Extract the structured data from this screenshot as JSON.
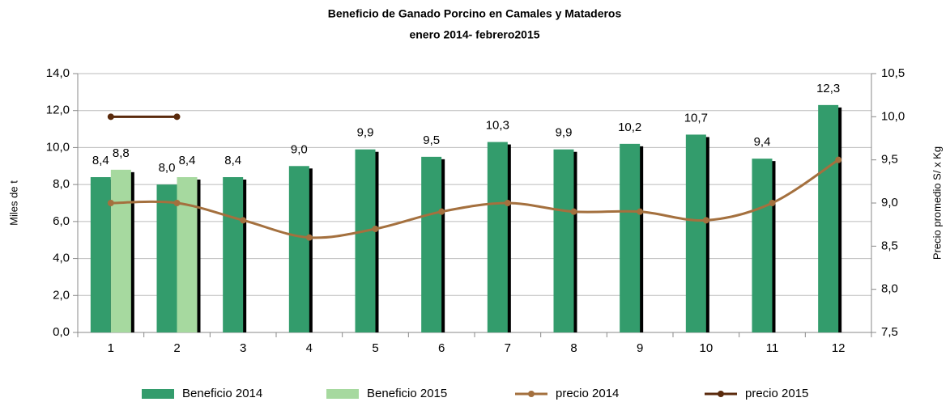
{
  "chart_data": {
    "type": "bar_line",
    "title": "Beneficio de Ganado Porcino en Camales y Mataderos",
    "subtitle": "enero 2014- febrero2015",
    "y_label": "Miles de t",
    "y2_label": "Precio promedio S/ x Kg",
    "categories": [
      "1",
      "2",
      "3",
      "4",
      "5",
      "6",
      "7",
      "8",
      "9",
      "10",
      "11",
      "12"
    ],
    "series": [
      {
        "name": "Beneficio 2014",
        "type": "bar",
        "color": "#339c6c",
        "values": [
          8.4,
          8.0,
          8.4,
          9.0,
          9.9,
          9.5,
          10.3,
          9.9,
          10.2,
          10.7,
          9.4,
          12.3
        ],
        "value_labels": [
          "8,4",
          "8,0",
          "8,4",
          "9,0",
          "9,9",
          "9,5",
          "10,3",
          "9,9",
          "10,2",
          "10,7",
          "9,4",
          "12,3"
        ]
      },
      {
        "name": "Beneficio 2015",
        "type": "bar",
        "color": "#a6d99f",
        "values": [
          8.8,
          8.4,
          null,
          null,
          null,
          null,
          null,
          null,
          null,
          null,
          null,
          null
        ],
        "value_labels": [
          "8,8",
          "8,4",
          null,
          null,
          null,
          null,
          null,
          null,
          null,
          null,
          null,
          null
        ]
      },
      {
        "name": "precio 2014",
        "type": "line",
        "axis": "y2",
        "color": "#a4703e",
        "values": [
          9.0,
          9.0,
          8.8,
          8.6,
          8.7,
          8.9,
          9.0,
          8.9,
          8.9,
          8.8,
          9.0,
          9.5
        ]
      },
      {
        "name": "precio 2015",
        "type": "line",
        "axis": "y2",
        "color": "#5a2a0c",
        "values": [
          10.0,
          10.0,
          null,
          null,
          null,
          null,
          null,
          null,
          null,
          null,
          null,
          null
        ]
      }
    ],
    "ylim": [
      0,
      14
    ],
    "yticks": [
      {
        "value": 0,
        "label": "0,0"
      },
      {
        "value": 2,
        "label": "2,0"
      },
      {
        "value": 4,
        "label": "4,0"
      },
      {
        "value": 6,
        "label": "6,0"
      },
      {
        "value": 8,
        "label": "8,0"
      },
      {
        "value": 10,
        "label": "10,0"
      },
      {
        "value": 12,
        "label": "12,0"
      },
      {
        "value": 14,
        "label": "14,0"
      }
    ],
    "y2lim": [
      7.5,
      10.5
    ],
    "y2ticks": [
      {
        "value": 7.5,
        "label": "7,5"
      },
      {
        "value": 8,
        "label": "8,0"
      },
      {
        "value": 8.5,
        "label": "8,5"
      },
      {
        "value": 9,
        "label": "9,0"
      },
      {
        "value": 9.5,
        "label": "9,5"
      },
      {
        "value": 10,
        "label": "10,0"
      },
      {
        "value": 10.5,
        "label": "10,5"
      }
    ],
    "grid": true,
    "legend": "bottom"
  }
}
